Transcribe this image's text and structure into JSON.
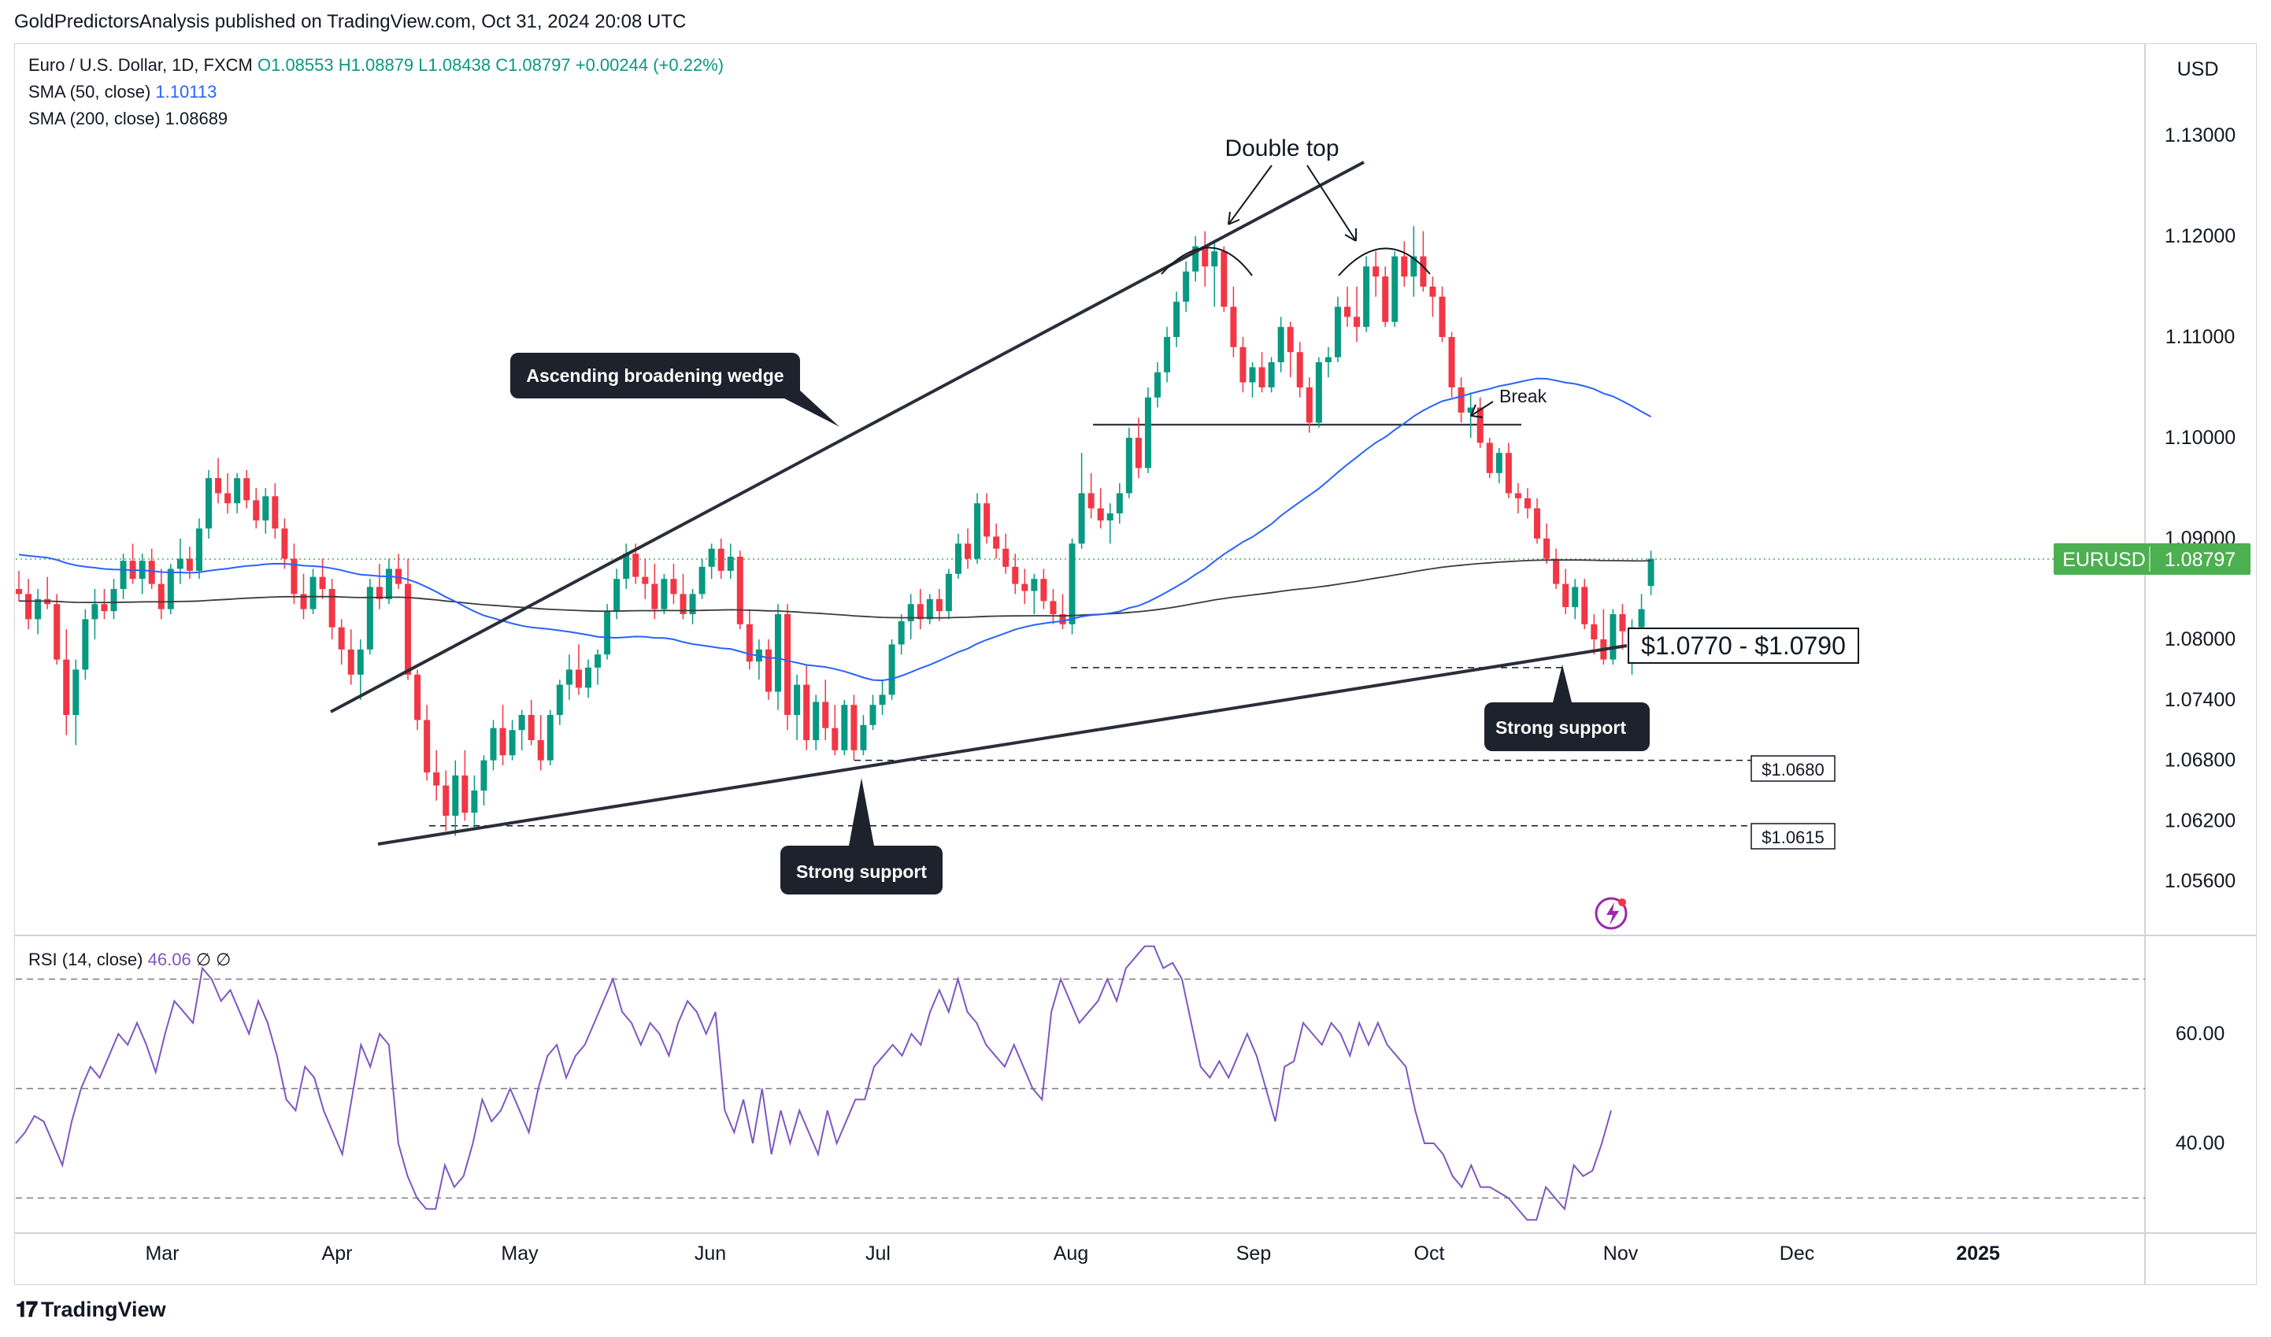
{
  "publisher": "GoldPredictorsAnalysis published on TradingView.com, Oct 31, 2024 20:08 UTC",
  "brand": "TradingView",
  "currency_button": "USD",
  "legend": {
    "symbol": "Euro / U.S. Dollar, 1D, FXCM",
    "open": "O1.08553",
    "high": "H1.08879",
    "low": "L1.08438",
    "close": "C1.08797",
    "change": "+0.00244 (+0.22%)",
    "sma50_label": "SMA (50, close)",
    "sma50_value": "1.10113",
    "sma200_label": "SMA (200, close)",
    "sma200_value": "1.08689",
    "rsi_label": "RSI (14, close)",
    "rsi_value": "46.06",
    "rsi_extra1": "∅",
    "rsi_extra2": "∅"
  },
  "colors": {
    "up": "#089981",
    "down": "#f23645",
    "sma50": "#2962ff",
    "sma200": "#3b3b3b",
    "rsi": "#7e57c2",
    "price_tag": "#4caf50",
    "trendline": "#2a2e39"
  },
  "icons": {
    "flash": "flash-icon",
    "logo": "tradingview-logo-icon"
  },
  "chart_data": {
    "type": "candlestick",
    "symbol": "EURUSD",
    "last_price": "1.08797",
    "price_ticks": [
      "1.13000",
      "1.12000",
      "1.11000",
      "1.10000",
      "1.09000",
      "1.08000",
      "1.07400",
      "1.06800",
      "1.06200",
      "1.05600"
    ],
    "rsi_ticks": [
      "60.00",
      "40.00"
    ],
    "time_ticks": [
      "Mar",
      "Apr",
      "May",
      "Jun",
      "Jul",
      "Aug",
      "Sep",
      "Oct",
      "Nov",
      "Dec",
      "2025"
    ],
    "rsi_levels": [
      70,
      50,
      30
    ],
    "annotations": {
      "double_top": "Double top",
      "wedge": "Ascending broadening wedge",
      "break": "Break",
      "support_zone": "$1.0770 - $1.0790",
      "strong_support_1": "Strong support",
      "strong_support_2": "Strong support",
      "level_1": "$1.0680",
      "level_2": "$1.0615"
    },
    "horizontal_levels": [
      1.1013,
      1.0772,
      1.068,
      1.0615
    ],
    "ohlc_daily": [
      [
        1.085,
        1.0868,
        1.0838,
        1.0845
      ],
      [
        1.0845,
        1.086,
        1.081,
        1.082
      ],
      [
        1.082,
        1.085,
        1.0805,
        1.084
      ],
      [
        1.084,
        1.0862,
        1.083,
        1.0835
      ],
      [
        1.0835,
        1.0845,
        1.0775,
        1.078
      ],
      [
        1.078,
        1.081,
        1.0705,
        1.0725
      ],
      [
        1.0725,
        1.078,
        1.0695,
        1.077
      ],
      [
        1.077,
        1.083,
        1.076,
        1.082
      ],
      [
        1.082,
        1.085,
        1.08,
        1.0835
      ],
      [
        1.0835,
        1.085,
        1.082,
        1.0828
      ],
      [
        1.0828,
        1.086,
        1.082,
        1.085
      ],
      [
        1.085,
        1.0885,
        1.084,
        1.0878
      ],
      [
        1.0878,
        1.0895,
        1.0855,
        1.086
      ],
      [
        1.086,
        1.0885,
        1.0845,
        1.0878
      ],
      [
        1.0878,
        1.089,
        1.085,
        1.0855
      ],
      [
        1.0855,
        1.087,
        1.082,
        1.083
      ],
      [
        1.083,
        1.0875,
        1.0825,
        1.087
      ],
      [
        1.087,
        1.09,
        1.0855,
        1.088
      ],
      [
        1.088,
        1.0892,
        1.086,
        1.0868
      ],
      [
        1.0868,
        1.092,
        1.086,
        1.091
      ],
      [
        1.091,
        1.0968,
        1.09,
        1.096
      ],
      [
        1.096,
        1.098,
        1.0935,
        1.0945
      ],
      [
        1.0945,
        1.0965,
        1.0925,
        1.0935
      ],
      [
        1.0935,
        1.0965,
        1.0925,
        1.096
      ],
      [
        1.096,
        1.0968,
        1.093,
        1.0938
      ],
      [
        1.0938,
        1.095,
        1.091,
        1.0918
      ],
      [
        1.0918,
        1.095,
        1.0905,
        1.0942
      ],
      [
        1.0942,
        1.0955,
        1.09,
        1.091
      ],
      [
        1.091,
        1.092,
        1.087,
        1.088
      ],
      [
        1.088,
        1.0895,
        1.0835,
        1.0845
      ],
      [
        1.0845,
        1.0865,
        1.082,
        1.083
      ],
      [
        1.083,
        1.087,
        1.0825,
        1.0862
      ],
      [
        1.0862,
        1.088,
        1.084,
        1.085
      ],
      [
        1.085,
        1.086,
        1.08,
        1.0812
      ],
      [
        1.0812,
        1.082,
        1.0775,
        1.079
      ],
      [
        1.079,
        1.081,
        1.0755,
        1.0765
      ],
      [
        1.0765,
        1.08,
        1.074,
        1.079
      ],
      [
        1.079,
        1.086,
        1.0785,
        1.0852
      ],
      [
        1.0852,
        1.0875,
        1.083,
        1.084
      ],
      [
        1.084,
        1.088,
        1.0835,
        1.087
      ],
      [
        1.087,
        1.0885,
        1.085,
        1.0855
      ],
      [
        1.0855,
        1.088,
        1.076,
        1.0765
      ],
      [
        1.0765,
        1.077,
        1.071,
        1.072
      ],
      [
        1.072,
        1.0735,
        1.066,
        1.0668
      ],
      [
        1.0668,
        1.069,
        1.064,
        1.0655
      ],
      [
        1.0655,
        1.067,
        1.061,
        1.0625
      ],
      [
        1.0625,
        1.068,
        1.0605,
        1.0665
      ],
      [
        1.0665,
        1.069,
        1.062,
        1.0628
      ],
      [
        1.0628,
        1.0665,
        1.0612,
        1.065
      ],
      [
        1.065,
        1.0685,
        1.0635,
        1.068
      ],
      [
        1.068,
        1.072,
        1.067,
        1.0712
      ],
      [
        1.0712,
        1.0735,
        1.0675,
        1.0685
      ],
      [
        1.0685,
        1.072,
        1.068,
        1.071
      ],
      [
        1.071,
        1.073,
        1.069,
        1.0725
      ],
      [
        1.0725,
        1.074,
        1.0695,
        1.07
      ],
      [
        1.07,
        1.0725,
        1.067,
        1.068
      ],
      [
        1.068,
        1.073,
        1.0675,
        1.0725
      ],
      [
        1.0725,
        1.076,
        1.0715,
        1.0755
      ],
      [
        1.0755,
        1.0785,
        1.074,
        1.077
      ],
      [
        1.077,
        1.0795,
        1.0745,
        1.0752
      ],
      [
        1.0752,
        1.078,
        1.0742,
        1.0772
      ],
      [
        1.0772,
        1.079,
        1.0755,
        1.0785
      ],
      [
        1.0785,
        1.0835,
        1.078,
        1.0828
      ],
      [
        1.0828,
        1.087,
        1.082,
        1.086
      ],
      [
        1.086,
        1.0895,
        1.085,
        1.0885
      ],
      [
        1.0885,
        1.0895,
        1.0855,
        1.0862
      ],
      [
        1.0862,
        1.088,
        1.084,
        1.0855
      ],
      [
        1.0855,
        1.0875,
        1.082,
        1.083
      ],
      [
        1.083,
        1.0865,
        1.0825,
        1.086
      ],
      [
        1.086,
        1.0875,
        1.0835,
        1.0845
      ],
      [
        1.0845,
        1.0865,
        1.082,
        1.0825
      ],
      [
        1.0825,
        1.085,
        1.0815,
        1.0845
      ],
      [
        1.0845,
        1.088,
        1.084,
        1.0872
      ],
      [
        1.0872,
        1.0895,
        1.086,
        1.089
      ],
      [
        1.089,
        1.09,
        1.086,
        1.0868
      ],
      [
        1.0868,
        1.0895,
        1.086,
        1.0882
      ],
      [
        1.0882,
        1.0888,
        1.081,
        1.0815
      ],
      [
        1.0815,
        1.083,
        1.077,
        1.0778
      ],
      [
        1.0778,
        1.08,
        1.076,
        1.079
      ],
      [
        1.079,
        1.08,
        1.074,
        1.0748
      ],
      [
        1.0748,
        1.0835,
        1.073,
        1.0825
      ],
      [
        1.0825,
        1.0835,
        1.071,
        1.0725
      ],
      [
        1.0725,
        1.0765,
        1.07,
        1.0755
      ],
      [
        1.0755,
        1.0775,
        1.069,
        1.07
      ],
      [
        1.07,
        1.0745,
        1.069,
        1.0738
      ],
      [
        1.0738,
        1.076,
        1.07,
        1.0712
      ],
      [
        1.0712,
        1.0735,
        1.0685,
        1.069
      ],
      [
        1.069,
        1.074,
        1.0685,
        1.0735
      ],
      [
        1.0735,
        1.0745,
        1.068,
        1.069
      ],
      [
        1.069,
        1.0725,
        1.0685,
        1.0715
      ],
      [
        1.0715,
        1.0745,
        1.071,
        1.0735
      ],
      [
        1.0735,
        1.076,
        1.0725,
        1.0745
      ],
      [
        1.0745,
        1.08,
        1.074,
        1.0795
      ],
      [
        1.0795,
        1.0825,
        1.0785,
        1.0818
      ],
      [
        1.0818,
        1.0845,
        1.08,
        1.0835
      ],
      [
        1.0835,
        1.085,
        1.081,
        1.082
      ],
      [
        1.082,
        1.0845,
        1.0815,
        1.084
      ],
      [
        1.084,
        1.085,
        1.0818,
        1.0828
      ],
      [
        1.0828,
        1.087,
        1.082,
        1.0865
      ],
      [
        1.0865,
        1.0905,
        1.086,
        1.0895
      ],
      [
        1.0895,
        1.091,
        1.087,
        1.088
      ],
      [
        1.088,
        1.0945,
        1.0875,
        1.0935
      ],
      [
        1.0935,
        1.0945,
        1.0895,
        1.0902
      ],
      [
        1.0902,
        1.0915,
        1.088,
        1.089
      ],
      [
        1.089,
        1.0905,
        1.0865,
        1.0872
      ],
      [
        1.0872,
        1.0885,
        1.0845,
        1.0855
      ],
      [
        1.0855,
        1.087,
        1.0835,
        1.0848
      ],
      [
        1.0848,
        1.0865,
        1.0825,
        1.086
      ],
      [
        1.086,
        1.087,
        1.083,
        1.0838
      ],
      [
        1.0838,
        1.085,
        1.0815,
        1.0825
      ],
      [
        1.0825,
        1.0845,
        1.081,
        1.0815
      ],
      [
        1.0815,
        1.09,
        1.0805,
        1.0895
      ],
      [
        1.0895,
        1.0985,
        1.089,
        1.0945
      ],
      [
        1.0945,
        1.0965,
        1.092,
        1.093
      ],
      [
        1.093,
        1.095,
        1.091,
        1.0918
      ],
      [
        1.0918,
        1.0935,
        1.0895,
        1.0925
      ],
      [
        1.0925,
        1.0955,
        1.0915,
        1.0945
      ],
      [
        1.0945,
        1.101,
        1.094,
        1.1
      ],
      [
        1.1,
        1.102,
        1.096,
        1.097
      ],
      [
        1.097,
        1.105,
        1.0965,
        1.104
      ],
      [
        1.104,
        1.1075,
        1.103,
        1.1065
      ],
      [
        1.1065,
        1.111,
        1.1055,
        1.11
      ],
      [
        1.11,
        1.1145,
        1.109,
        1.1135
      ],
      [
        1.1135,
        1.1175,
        1.1125,
        1.1165
      ],
      [
        1.1165,
        1.12,
        1.1155,
        1.119
      ],
      [
        1.119,
        1.1205,
        1.115,
        1.117
      ],
      [
        1.117,
        1.1195,
        1.113,
        1.1185
      ],
      [
        1.1185,
        1.119,
        1.1125,
        1.113
      ],
      [
        1.113,
        1.115,
        1.108,
        1.109
      ],
      [
        1.109,
        1.11,
        1.1045,
        1.1055
      ],
      [
        1.1055,
        1.1075,
        1.104,
        1.107
      ],
      [
        1.107,
        1.1085,
        1.1045,
        1.105
      ],
      [
        1.105,
        1.108,
        1.1045,
        1.1075
      ],
      [
        1.1075,
        1.112,
        1.1065,
        1.111
      ],
      [
        1.111,
        1.1115,
        1.106,
        1.1085
      ],
      [
        1.1085,
        1.1095,
        1.104,
        1.105
      ],
      [
        1.105,
        1.106,
        1.1005,
        1.1015
      ],
      [
        1.1015,
        1.108,
        1.101,
        1.1075
      ],
      [
        1.1075,
        1.109,
        1.106,
        1.108
      ],
      [
        1.108,
        1.114,
        1.1075,
        1.113
      ],
      [
        1.113,
        1.115,
        1.111,
        1.112
      ],
      [
        1.112,
        1.115,
        1.1095,
        1.111
      ],
      [
        1.111,
        1.118,
        1.1105,
        1.117
      ],
      [
        1.117,
        1.1185,
        1.114,
        1.116
      ],
      [
        1.116,
        1.117,
        1.111,
        1.1115
      ],
      [
        1.1115,
        1.1185,
        1.111,
        1.118
      ],
      [
        1.118,
        1.1195,
        1.115,
        1.116
      ],
      [
        1.116,
        1.121,
        1.114,
        1.118
      ],
      [
        1.118,
        1.1205,
        1.1145,
        1.115
      ],
      [
        1.115,
        1.116,
        1.112,
        1.114
      ],
      [
        1.114,
        1.115,
        1.1095,
        1.11
      ],
      [
        1.11,
        1.1105,
        1.104,
        1.105
      ],
      [
        1.105,
        1.106,
        1.1015,
        1.1025
      ],
      [
        1.1025,
        1.1045,
        1.1,
        1.103
      ],
      [
        1.103,
        1.104,
        1.099,
        1.0995
      ],
      [
        1.0995,
        1.1,
        1.096,
        1.0965
      ],
      [
        1.0965,
        1.099,
        1.0955,
        1.0985
      ],
      [
        1.0985,
        1.0995,
        1.094,
        1.0945
      ],
      [
        1.0945,
        1.0955,
        1.0925,
        1.094
      ],
      [
        1.094,
        1.095,
        1.092,
        1.093
      ],
      [
        1.093,
        1.094,
        1.0895,
        1.09
      ],
      [
        1.09,
        1.0915,
        1.0875,
        1.088
      ],
      [
        1.088,
        1.089,
        1.085,
        1.0855
      ],
      [
        1.0855,
        1.087,
        1.0825,
        1.0832
      ],
      [
        1.0832,
        1.086,
        1.082,
        1.0852
      ],
      [
        1.0852,
        1.086,
        1.081,
        1.0815
      ],
      [
        1.0815,
        1.0825,
        1.0785,
        1.08
      ],
      [
        1.08,
        1.083,
        1.0775,
        1.078
      ],
      [
        1.078,
        1.083,
        1.0775,
        1.0825
      ],
      [
        1.0825,
        1.0835,
        1.079,
        1.0808
      ],
      [
        1.0808,
        1.082,
        1.0765,
        1.0812
      ],
      [
        1.0812,
        1.0845,
        1.08,
        1.083
      ],
      [
        1.0853,
        1.0888,
        1.0844,
        1.088
      ]
    ],
    "sma50_start_value": 1.0885,
    "sma200_start_value": 1.0838,
    "rsi": [
      40,
      42,
      45,
      44,
      40,
      36,
      44,
      50,
      54,
      52,
      56,
      60,
      58,
      62,
      58,
      53,
      60,
      66,
      64,
      62,
      72,
      70,
      66,
      68,
      64,
      60,
      66,
      62,
      56,
      48,
      46,
      54,
      52,
      46,
      42,
      38,
      48,
      58,
      54,
      60,
      58,
      40,
      34,
      30,
      28,
      28,
      36,
      32,
      34,
      40,
      48,
      44,
      46,
      50,
      46,
      42,
      50,
      56,
      58,
      52,
      56,
      58,
      62,
      66,
      70,
      64,
      62,
      58,
      62,
      60,
      56,
      62,
      66,
      64,
      60,
      64,
      46,
      42,
      48,
      40,
      50,
      38,
      46,
      40,
      46,
      42,
      38,
      46,
      40,
      44,
      48,
      48,
      54,
      56,
      58,
      56,
      60,
      58,
      64,
      68,
      64,
      70,
      64,
      62,
      58,
      56,
      54,
      58,
      54,
      50,
      48,
      64,
      70,
      66,
      62,
      64,
      66,
      70,
      66,
      72,
      74,
      76,
      76,
      72,
      73,
      70,
      62,
      54,
      52,
      55,
      52,
      56,
      60,
      56,
      50,
      44,
      54,
      55,
      62,
      60,
      58,
      62,
      60,
      56,
      62,
      58,
      62,
      58,
      56,
      54,
      46,
      40,
      40,
      38,
      34,
      32,
      36,
      32,
      32,
      31,
      30,
      28,
      26,
      26,
      32,
      30,
      28,
      36,
      34,
      35,
      40,
      46
    ]
  }
}
